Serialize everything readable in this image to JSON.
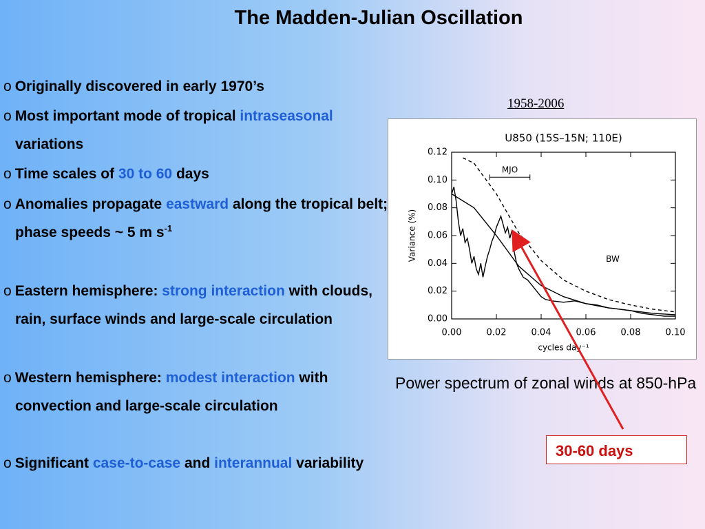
{
  "title": "The Madden-Julian Oscillation",
  "bullet_marker": "o",
  "bullets": [
    {
      "segments": [
        {
          "text": "Originally discovered in early 1970’s"
        }
      ]
    },
    {
      "segments": [
        {
          "text": "Most important mode of tropical "
        },
        {
          "text": "intraseasonal",
          "color": "#1f5fd6"
        },
        {
          "text": " variations"
        }
      ]
    },
    {
      "segments": [
        {
          "text": "Time scales of "
        },
        {
          "text": "30 to 60",
          "color": "#1f5fd6"
        },
        {
          "text": " days"
        }
      ]
    },
    {
      "segments": [
        {
          "text": "Anomalies propagate "
        },
        {
          "text": "eastward",
          "color": "#1f5fd6"
        },
        {
          "text": " along the tropical belt; phase speeds ~ 5 m s"
        },
        {
          "text": "-1",
          "sup": true
        }
      ]
    },
    {
      "segments": [
        {
          "text": "Eastern hemisphere: "
        },
        {
          "text": "strong interaction",
          "color": "#1f5fd6"
        },
        {
          "text": " with clouds, rain, surface winds and large-scale circulation"
        }
      ]
    },
    {
      "segments": [
        {
          "text": "Western hemisphere: "
        },
        {
          "text": "modest interaction",
          "color": "#1f5fd6"
        },
        {
          "text": " with convection and large-scale circulation"
        }
      ]
    },
    {
      "segments": [
        {
          "text": "Significant "
        },
        {
          "text": "case-to-case",
          "color": "#1f5fd6"
        },
        {
          "text": " and "
        },
        {
          "text": "interannual",
          "color": "#1f5fd6"
        },
        {
          "text": " variability"
        }
      ]
    }
  ],
  "figure_period": "1958-2006",
  "figure_caption": "Power spectrum of zonal winds at 850-hPa",
  "callout": "30-60 days",
  "chart_data": {
    "type": "line",
    "title": "U850 (15S–15N; 110E)",
    "xlabel": "cycles day⁻¹",
    "ylabel": "Variance (%)",
    "xlim": [
      0,
      0.1
    ],
    "ylim": [
      0,
      0.12
    ],
    "xticks": [
      {
        "value": 0,
        "label": "0.00"
      },
      {
        "value": 0.02,
        "label": "0.02"
      },
      {
        "value": 0.04,
        "label": "0.04"
      },
      {
        "value": 0.06,
        "label": "0.06"
      },
      {
        "value": 0.08,
        "label": "0.08"
      },
      {
        "value": 0.1,
        "label": "0.10"
      }
    ],
    "yticks": [
      {
        "value": 0,
        "label": "0.00"
      },
      {
        "value": 0.02,
        "label": "0.02"
      },
      {
        "value": 0.04,
        "label": "0.04"
      },
      {
        "value": 0.06,
        "label": "0.06"
      },
      {
        "value": 0.08,
        "label": "0.08"
      },
      {
        "value": 0.1,
        "label": "0.10"
      },
      {
        "value": 0.12,
        "label": "0.12"
      }
    ],
    "series": [
      {
        "color": "#000000",
        "x": [
          0,
          0.001,
          0.002,
          0.003,
          0.004,
          0.005,
          0.006,
          0.007,
          0.008,
          0.009,
          0.01,
          0.011,
          0.012,
          0.013,
          0.014,
          0.015,
          0.016,
          0.017,
          0.018,
          0.019,
          0.02,
          0.021,
          0.022,
          0.023,
          0.024,
          0.025,
          0.026,
          0.027,
          0.028,
          0.029,
          0.03,
          0.032,
          0.034,
          0.036,
          0.038,
          0.04,
          0.042,
          0.045,
          0.05,
          0.055,
          0.06,
          0.065,
          0.07,
          0.075,
          0.08,
          0.085,
          0.09,
          0.095,
          0.1
        ],
        "values": [
          0.09,
          0.095,
          0.085,
          0.07,
          0.06,
          0.065,
          0.055,
          0.058,
          0.05,
          0.04,
          0.045,
          0.036,
          0.032,
          0.04,
          0.03,
          0.038,
          0.045,
          0.05,
          0.056,
          0.06,
          0.066,
          0.07,
          0.074,
          0.068,
          0.062,
          0.066,
          0.058,
          0.064,
          0.048,
          0.04,
          0.036,
          0.03,
          0.028,
          0.024,
          0.02,
          0.016,
          0.014,
          0.013,
          0.012,
          0.013,
          0.011,
          0.01,
          0.008,
          0.007,
          0.006,
          0.004,
          0.003,
          0.002,
          0.002
        ]
      },
      {
        "color": "#000000",
        "x": [
          0,
          0.01,
          0.02,
          0.03,
          0.04,
          0.05,
          0.06,
          0.07,
          0.08,
          0.09,
          0.1
        ],
        "values": [
          0.09,
          0.08,
          0.06,
          0.038,
          0.024,
          0.016,
          0.011,
          0.008,
          0.006,
          0.004,
          0.003
        ]
      },
      {
        "color": "#000000",
        "dashed": true,
        "x": [
          0.005,
          0.01,
          0.02,
          0.03,
          0.04,
          0.05,
          0.06,
          0.07,
          0.08,
          0.09,
          0.1
        ],
        "values": [
          0.116,
          0.112,
          0.09,
          0.062,
          0.042,
          0.028,
          0.02,
          0.014,
          0.01,
          0.007,
          0.005
        ]
      }
    ],
    "annotations": [
      {
        "text": "MJO",
        "x": 0.026,
        "y": 0.107,
        "range": [
          0.017,
          0.035
        ],
        "range_y": 0.102
      },
      {
        "text": "BW",
        "x": 0.072,
        "y": 0.043
      }
    ]
  }
}
